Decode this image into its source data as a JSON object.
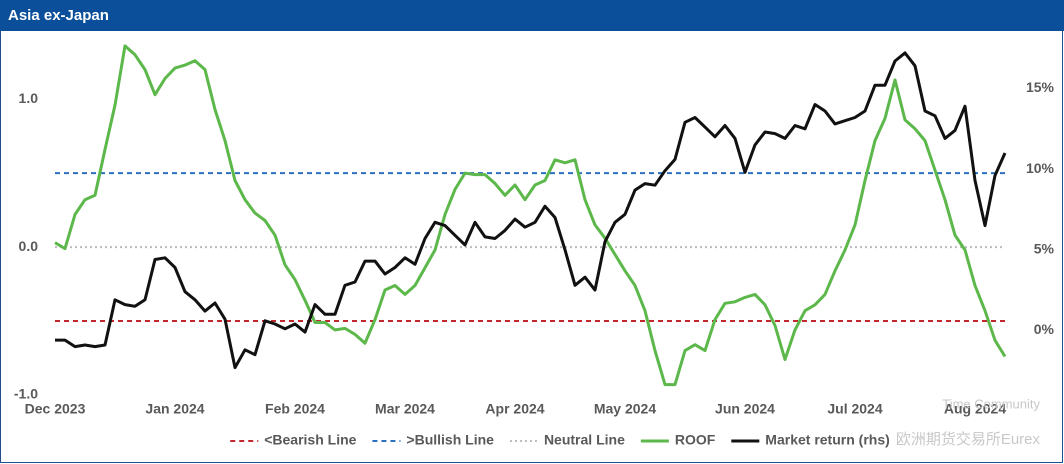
{
  "chart_data": {
    "type": "line",
    "title": "Asia ex-Japan",
    "categories": [
      "Dec 2023",
      null,
      null,
      null,
      null,
      null,
      null,
      null,
      null,
      null,
      null,
      null,
      "Jan 2024",
      null,
      null,
      null,
      null,
      null,
      null,
      null,
      null,
      null,
      null,
      null,
      "Feb 2024",
      null,
      null,
      null,
      null,
      null,
      null,
      null,
      null,
      null,
      null,
      "Mar 2024",
      null,
      null,
      null,
      null,
      null,
      null,
      null,
      null,
      null,
      null,
      "Apr 2024",
      null,
      null,
      null,
      null,
      null,
      null,
      null,
      null,
      null,
      null,
      "May 2024",
      null,
      null,
      null,
      null,
      null,
      null,
      null,
      null,
      null,
      null,
      null,
      "Jun 2024",
      null,
      null,
      null,
      null,
      null,
      null,
      null,
      null,
      null,
      null,
      "Jul 2024",
      null,
      null,
      null,
      null,
      null,
      null,
      null,
      null,
      null,
      null,
      null,
      "Aug 2024",
      null,
      null,
      null
    ],
    "ylim": [
      -1.0,
      1.4
    ],
    "yticks": [
      {
        "value": -1,
        "label": "-1.0"
      },
      {
        "value": 0,
        "label": "0.0"
      },
      {
        "value": 1,
        "label": "1.0"
      }
    ],
    "y2lim": [
      -4,
      18
    ],
    "y2ticks": [
      {
        "value": 0,
        "label": "0%"
      },
      {
        "value": 5,
        "label": "5%"
      },
      {
        "value": 10,
        "label": "10%"
      },
      {
        "value": 15,
        "label": "15%"
      }
    ],
    "reference_lines": [
      {
        "name": "<Bearish Line",
        "value": -0.5,
        "color": "#c0282d",
        "style": "dashed"
      },
      {
        "name": ">Bullish Line",
        "value": 0.5,
        "color": "#2a6fc0",
        "style": "dashed"
      },
      {
        "name": "Neutral Line",
        "value": 0,
        "color": "#bbbbbb",
        "style": "dotted"
      }
    ],
    "series": [
      {
        "name": "ROOF",
        "color": "#5cb84a",
        "values": [
          0.03,
          -0.01,
          0.22,
          0.32,
          0.35,
          0.66,
          0.96,
          1.36,
          1.3,
          1.2,
          1.03,
          1.14,
          1.21,
          1.23,
          1.26,
          1.2,
          0.93,
          0.72,
          0.45,
          0.32,
          0.23,
          0.18,
          0.08,
          -0.12,
          -0.22,
          -0.36,
          -0.51,
          -0.51,
          -0.56,
          -0.55,
          -0.59,
          -0.65,
          -0.49,
          -0.29,
          -0.26,
          -0.32,
          -0.26,
          -0.14,
          -0.02,
          0.22,
          0.39,
          0.5,
          0.49,
          0.49,
          0.43,
          0.35,
          0.42,
          0.32,
          0.42,
          0.45,
          0.59,
          0.57,
          0.59,
          0.32,
          0.15,
          0.06,
          -0.05,
          -0.16,
          -0.26,
          -0.43,
          -0.7,
          -0.93,
          -0.93,
          -0.7,
          -0.66,
          -0.7,
          -0.49,
          -0.38,
          -0.37,
          -0.34,
          -0.32,
          -0.39,
          -0.53,
          -0.76,
          -0.56,
          -0.43,
          -0.39,
          -0.32,
          -0.16,
          -0.02,
          0.15,
          0.45,
          0.72,
          0.87,
          1.13,
          0.86,
          0.8,
          0.72,
          0.52,
          0.32,
          0.08,
          -0.02,
          -0.26,
          -0.43,
          -0.63,
          -0.74
        ]
      },
      {
        "name": "Market return (rhs)",
        "color": "#111111",
        "axis": "y2",
        "values": [
          -0.6,
          -0.6,
          -1.0,
          -0.9,
          -1.0,
          -0.9,
          1.9,
          1.6,
          1.5,
          1.9,
          4.4,
          4.5,
          3.9,
          2.4,
          1.9,
          1.2,
          1.7,
          0.7,
          -2.3,
          -1.2,
          -1.5,
          0.6,
          0.4,
          0.1,
          0.4,
          -0.1,
          1.6,
          1.0,
          1.0,
          2.8,
          3.0,
          4.3,
          4.3,
          3.5,
          3.9,
          4.5,
          4.1,
          5.7,
          6.7,
          6.5,
          5.9,
          5.3,
          6.7,
          5.8,
          5.7,
          6.2,
          6.9,
          6.4,
          6.7,
          7.7,
          7.0,
          5.0,
          2.8,
          3.3,
          2.5,
          5.5,
          6.7,
          7.2,
          8.7,
          9.1,
          9.0,
          9.9,
          10.6,
          12.9,
          13.2,
          12.6,
          12.0,
          12.7,
          11.9,
          9.8,
          11.5,
          12.3,
          12.2,
          11.9,
          12.7,
          12.5,
          14.0,
          13.6,
          12.8,
          13.0,
          13.2,
          13.6,
          15.2,
          15.2,
          16.7,
          17.2,
          16.4,
          13.6,
          13.3,
          11.9,
          12.4,
          13.9,
          9.3,
          6.5,
          9.6,
          11.0
        ]
      }
    ],
    "legend": "bottom",
    "watermarks": [
      "Time Community",
      "欧洲期货交易所Eurex"
    ]
  }
}
